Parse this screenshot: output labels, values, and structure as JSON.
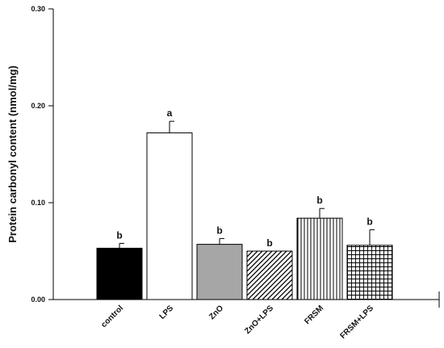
{
  "chart_data": {
    "type": "bar",
    "title": "",
    "xlabel": "",
    "ylabel": "Protein carbonyl content (nmol/mg)",
    "ylim": [
      0,
      0.3
    ],
    "yticks": [
      0.0,
      0.1,
      0.2,
      0.3
    ],
    "ytick_labels": [
      "0.00",
      "0.10",
      "0.20",
      "0.30"
    ],
    "grid": false,
    "categories": [
      "control",
      "LPS",
      "ZnO",
      "ZnO+LPS",
      "FRSM",
      "FRSM+LPS"
    ],
    "values": [
      0.053,
      0.172,
      0.057,
      0.05,
      0.084,
      0.056
    ],
    "errors": [
      0.005,
      0.012,
      0.006,
      0.0,
      0.01,
      0.016
    ],
    "significance_letters": [
      "b",
      "a",
      "b",
      "b",
      "b",
      "b"
    ],
    "fills": [
      "solid-black",
      "white",
      "gray",
      "diagonal-hatch",
      "vertical-lines",
      "grid"
    ],
    "colors": {
      "solid": "#000000",
      "gray": "#a6a6a6",
      "edge": "#000000"
    }
  }
}
